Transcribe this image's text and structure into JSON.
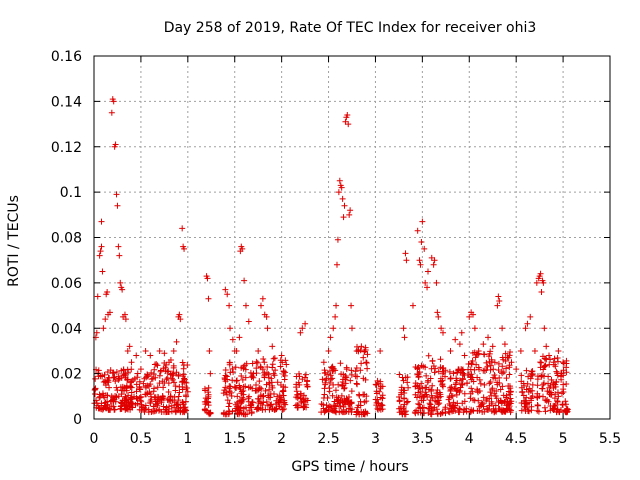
{
  "chart_data": {
    "type": "scatter",
    "title": "Day 258 of 2019, Rate Of TEC Index for receiver ohi3",
    "xlabel": "GPS time / hours",
    "ylabel": "ROTI / TECUs",
    "xlim": [
      0,
      5.5
    ],
    "ylim": [
      0,
      0.16
    ],
    "x_ticks": [
      0,
      0.5,
      1,
      1.5,
      2,
      2.5,
      3,
      3.5,
      4,
      4.5,
      5,
      5.5
    ],
    "x_tick_labels": [
      "0",
      "0.5",
      "1",
      "1.5",
      "2",
      "2.5",
      "3",
      "3.5",
      "4",
      "4.5",
      "5",
      "5.5"
    ],
    "y_ticks": [
      0,
      0.02,
      0.04,
      0.06,
      0.08,
      0.1,
      0.12,
      0.14,
      0.16
    ],
    "y_tick_labels": [
      "0",
      "0.02",
      "0.04",
      "0.06",
      "0.08",
      "0.1",
      "0.12",
      "0.14",
      "0.16"
    ],
    "grid": true,
    "marker": "+",
    "marker_color": "#e00000",
    "series": [
      {
        "name": "ROTI",
        "points": [
          [
            0.02,
            0.036
          ],
          [
            0.03,
            0.038
          ],
          [
            0.04,
            0.054
          ],
          [
            0.06,
            0.072
          ],
          [
            0.07,
            0.074
          ],
          [
            0.08,
            0.087
          ],
          [
            0.08,
            0.076
          ],
          [
            0.09,
            0.065
          ],
          [
            0.1,
            0.04
          ],
          [
            0.12,
            0.044
          ],
          [
            0.13,
            0.055
          ],
          [
            0.14,
            0.056
          ],
          [
            0.15,
            0.046
          ],
          [
            0.17,
            0.047
          ],
          [
            0.19,
            0.135
          ],
          [
            0.2,
            0.141
          ],
          [
            0.21,
            0.14
          ],
          [
            0.22,
            0.12
          ],
          [
            0.23,
            0.121
          ],
          [
            0.24,
            0.099
          ],
          [
            0.25,
            0.094
          ],
          [
            0.26,
            0.076
          ],
          [
            0.27,
            0.072
          ],
          [
            0.28,
            0.06
          ],
          [
            0.29,
            0.058
          ],
          [
            0.3,
            0.057
          ],
          [
            0.31,
            0.045
          ],
          [
            0.33,
            0.046
          ],
          [
            0.34,
            0.044
          ],
          [
            0.36,
            0.03
          ],
          [
            0.38,
            0.032
          ],
          [
            0.4,
            0.025
          ],
          [
            0.45,
            0.028
          ],
          [
            0.5,
            0.022
          ],
          [
            0.55,
            0.03
          ],
          [
            0.6,
            0.028
          ],
          [
            0.65,
            0.024
          ],
          [
            0.7,
            0.03
          ],
          [
            0.75,
            0.029
          ],
          [
            0.8,
            0.025
          ],
          [
            0.82,
            0.026
          ],
          [
            0.85,
            0.03
          ],
          [
            0.88,
            0.034
          ],
          [
            0.9,
            0.045
          ],
          [
            0.91,
            0.046
          ],
          [
            0.92,
            0.044
          ],
          [
            0.94,
            0.084
          ],
          [
            0.95,
            0.076
          ],
          [
            0.96,
            0.075
          ],
          [
            1.0,
            0.012
          ],
          [
            1.2,
            0.063
          ],
          [
            1.21,
            0.062
          ],
          [
            1.22,
            0.053
          ],
          [
            1.23,
            0.03
          ],
          [
            1.24,
            0.02
          ],
          [
            1.4,
            0.057
          ],
          [
            1.42,
            0.055
          ],
          [
            1.44,
            0.05
          ],
          [
            1.45,
            0.04
          ],
          [
            1.48,
            0.035
          ],
          [
            1.5,
            0.03
          ],
          [
            1.52,
            0.03
          ],
          [
            1.55,
            0.036
          ],
          [
            1.56,
            0.074
          ],
          [
            1.57,
            0.076
          ],
          [
            1.58,
            0.075
          ],
          [
            1.6,
            0.061
          ],
          [
            1.62,
            0.05
          ],
          [
            1.65,
            0.043
          ],
          [
            1.7,
            0.02
          ],
          [
            1.75,
            0.03
          ],
          [
            1.78,
            0.05
          ],
          [
            1.8,
            0.053
          ],
          [
            1.82,
            0.046
          ],
          [
            1.84,
            0.045
          ],
          [
            1.85,
            0.04
          ],
          [
            1.9,
            0.032
          ],
          [
            2.0,
            0.028
          ],
          [
            2.05,
            0.024
          ],
          [
            2.2,
            0.038
          ],
          [
            2.22,
            0.04
          ],
          [
            2.25,
            0.042
          ],
          [
            2.45,
            0.025
          ],
          [
            2.5,
            0.03
          ],
          [
            2.52,
            0.036
          ],
          [
            2.55,
            0.04
          ],
          [
            2.57,
            0.045
          ],
          [
            2.58,
            0.05
          ],
          [
            2.59,
            0.068
          ],
          [
            2.6,
            0.079
          ],
          [
            2.61,
            0.1
          ],
          [
            2.62,
            0.105
          ],
          [
            2.63,
            0.103
          ],
          [
            2.64,
            0.102
          ],
          [
            2.65,
            0.097
          ],
          [
            2.66,
            0.089
          ],
          [
            2.67,
            0.094
          ],
          [
            2.68,
            0.131
          ],
          [
            2.69,
            0.133
          ],
          [
            2.7,
            0.134
          ],
          [
            2.71,
            0.13
          ],
          [
            2.72,
            0.09
          ],
          [
            2.73,
            0.092
          ],
          [
            2.74,
            0.05
          ],
          [
            2.75,
            0.04
          ],
          [
            2.8,
            0.03
          ],
          [
            2.85,
            0.032
          ],
          [
            2.9,
            0.025
          ],
          [
            3.05,
            0.03
          ],
          [
            3.3,
            0.04
          ],
          [
            3.31,
            0.036
          ],
          [
            3.32,
            0.073
          ],
          [
            3.33,
            0.07
          ],
          [
            3.4,
            0.05
          ],
          [
            3.45,
            0.083
          ],
          [
            3.47,
            0.07
          ],
          [
            3.48,
            0.068
          ],
          [
            3.49,
            0.078
          ],
          [
            3.5,
            0.087
          ],
          [
            3.52,
            0.075
          ],
          [
            3.53,
            0.06
          ],
          [
            3.55,
            0.058
          ],
          [
            3.56,
            0.065
          ],
          [
            3.6,
            0.071
          ],
          [
            3.62,
            0.068
          ],
          [
            3.63,
            0.07
          ],
          [
            3.65,
            0.06
          ],
          [
            3.66,
            0.047
          ],
          [
            3.67,
            0.045
          ],
          [
            3.7,
            0.04
          ],
          [
            3.72,
            0.038
          ],
          [
            3.8,
            0.03
          ],
          [
            3.85,
            0.035
          ],
          [
            3.9,
            0.033
          ],
          [
            3.92,
            0.038
          ],
          [
            3.95,
            0.028
          ],
          [
            4.0,
            0.045
          ],
          [
            4.02,
            0.047
          ],
          [
            4.04,
            0.046
          ],
          [
            4.06,
            0.04
          ],
          [
            4.1,
            0.03
          ],
          [
            4.15,
            0.033
          ],
          [
            4.2,
            0.036
          ],
          [
            4.25,
            0.032
          ],
          [
            4.3,
            0.05
          ],
          [
            4.31,
            0.054
          ],
          [
            4.32,
            0.052
          ],
          [
            4.35,
            0.04
          ],
          [
            4.38,
            0.033
          ],
          [
            4.42,
            0.027
          ],
          [
            4.45,
            0.025
          ],
          [
            4.5,
            0.022
          ],
          [
            4.55,
            0.03
          ],
          [
            4.6,
            0.04
          ],
          [
            4.62,
            0.042
          ],
          [
            4.65,
            0.045
          ],
          [
            4.7,
            0.03
          ],
          [
            4.72,
            0.06
          ],
          [
            4.74,
            0.062
          ],
          [
            4.75,
            0.063
          ],
          [
            4.76,
            0.064
          ],
          [
            4.77,
            0.056
          ],
          [
            4.78,
            0.061
          ],
          [
            4.79,
            0.06
          ],
          [
            4.8,
            0.04
          ],
          [
            4.82,
            0.032
          ],
          [
            4.85,
            0.028
          ],
          [
            4.9,
            0.025
          ],
          [
            4.95,
            0.03
          ],
          [
            5.0,
            0.025
          ]
        ]
      }
    ],
    "dense_bands": [
      [
        0.0,
        0.5,
        0.004,
        0.022
      ],
      [
        0.5,
        1.0,
        0.003,
        0.025
      ],
      [
        1.18,
        1.25,
        0.002,
        0.015
      ],
      [
        1.38,
        1.7,
        0.002,
        0.026
      ],
      [
        1.72,
        2.05,
        0.004,
        0.028
      ],
      [
        2.15,
        2.28,
        0.005,
        0.02
      ],
      [
        2.42,
        2.75,
        0.003,
        0.026
      ],
      [
        2.78,
        2.92,
        0.002,
        0.032
      ],
      [
        3.0,
        3.08,
        0.004,
        0.018
      ],
      [
        3.25,
        3.35,
        0.002,
        0.02
      ],
      [
        3.42,
        3.75,
        0.002,
        0.028
      ],
      [
        3.78,
        3.98,
        0.003,
        0.022
      ],
      [
        3.98,
        4.45,
        0.003,
        0.03
      ],
      [
        4.55,
        4.68,
        0.003,
        0.022
      ],
      [
        4.72,
        5.05,
        0.003,
        0.028
      ]
    ]
  }
}
